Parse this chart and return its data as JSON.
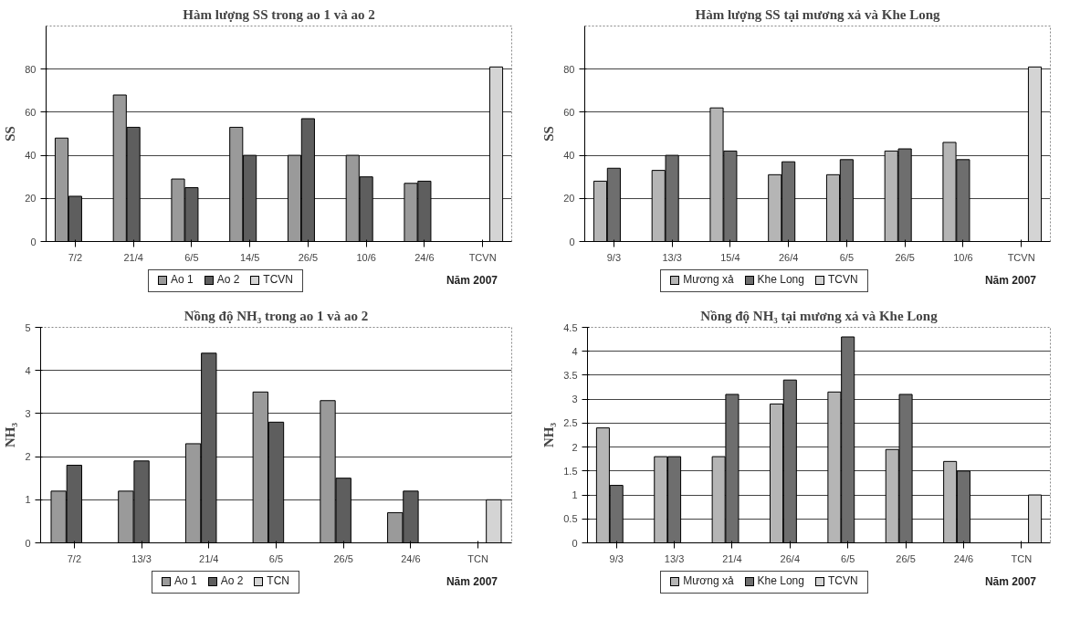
{
  "chart_data": [
    {
      "type": "bar",
      "title": "Hàm lượng SS trong ao 1 và ao 2",
      "ylabel": "SS",
      "annotations": [
        "Năm 2007"
      ],
      "categories": [
        "7/2",
        "21/4",
        "6/5",
        "14/5",
        "26/5",
        "10/6",
        "24/6",
        "TCVN"
      ],
      "series": [
        {
          "name": "Ao 1",
          "color": "#9a9a9a",
          "values": [
            48,
            68,
            29,
            53,
            40,
            40,
            27,
            null
          ]
        },
        {
          "name": "Ao 2",
          "color": "#5e5e5e",
          "values": [
            21,
            53,
            25,
            40,
            57,
            30,
            28,
            null
          ]
        },
        {
          "name": "TCVN",
          "color": "#d4d4d4",
          "values": [
            null,
            null,
            null,
            null,
            null,
            null,
            null,
            81
          ]
        }
      ],
      "ylim": [
        0,
        100
      ],
      "yticks": [
        0,
        20,
        40,
        60,
        80
      ],
      "grid": "y",
      "legend": "bottom"
    },
    {
      "type": "bar",
      "title": "Hàm lượng SS tại mương xả và Khe Long",
      "ylabel": "SS",
      "annotations": [
        "Năm 2007"
      ],
      "categories": [
        "9/3",
        "13/3",
        "15/4",
        "26/4",
        "6/5",
        "26/5",
        "10/6",
        "TCVN"
      ],
      "series": [
        {
          "name": "Mương xả",
          "color": "#b5b5b5",
          "values": [
            28,
            33,
            62,
            31,
            31,
            42,
            46,
            null
          ]
        },
        {
          "name": "Khe Long",
          "color": "#6e6e6e",
          "values": [
            34,
            40,
            42,
            37,
            38,
            43,
            38,
            null
          ]
        },
        {
          "name": "TCVN",
          "color": "#d4d4d4",
          "values": [
            null,
            null,
            null,
            null,
            null,
            null,
            null,
            81
          ]
        }
      ],
      "ylim": [
        0,
        100
      ],
      "yticks": [
        0,
        20,
        40,
        60,
        80
      ],
      "grid": "y",
      "legend": "bottom"
    },
    {
      "type": "bar",
      "title": "Nồng độ NH₃ trong ao 1 và ao 2",
      "ylabel": "NH₃",
      "annotations": [
        "Năm 2007"
      ],
      "categories": [
        "7/2",
        "13/3",
        "21/4",
        "6/5",
        "26/5",
        "24/6",
        "TCN"
      ],
      "series": [
        {
          "name": "Ao 1",
          "color": "#9a9a9a",
          "values": [
            1.2,
            1.2,
            2.3,
            3.5,
            3.3,
            0.7,
            null
          ]
        },
        {
          "name": "Ao 2",
          "color": "#5e5e5e",
          "values": [
            1.8,
            1.9,
            4.4,
            2.8,
            1.5,
            1.2,
            null
          ]
        },
        {
          "name": "TCN",
          "color": "#d4d4d4",
          "values": [
            null,
            null,
            null,
            null,
            null,
            null,
            1.0
          ]
        }
      ],
      "ylim": [
        0,
        5
      ],
      "yticks": [
        0,
        1,
        2,
        3,
        4,
        5
      ],
      "grid": "y",
      "legend": "bottom"
    },
    {
      "type": "bar",
      "title": "Nồng độ NH₃ tại mương xả và Khe Long",
      "ylabel": "NH₃",
      "annotations": [
        "Năm 2007"
      ],
      "categories": [
        "9/3",
        "13/3",
        "21/4",
        "26/4",
        "6/5",
        "26/5",
        "24/6",
        "TCN"
      ],
      "series": [
        {
          "name": "Mương xả",
          "color": "#b5b5b5",
          "values": [
            2.4,
            1.8,
            1.8,
            2.9,
            3.15,
            1.95,
            1.7,
            null
          ]
        },
        {
          "name": "Khe Long",
          "color": "#6e6e6e",
          "values": [
            1.2,
            1.8,
            3.1,
            3.4,
            4.3,
            3.1,
            1.5,
            null
          ]
        },
        {
          "name": "TCVN",
          "color": "#d4d4d4",
          "values": [
            null,
            null,
            null,
            null,
            null,
            null,
            null,
            1.0
          ]
        }
      ],
      "ylim": [
        0,
        4.5
      ],
      "yticks": [
        0,
        0.5,
        1,
        1.5,
        2,
        2.5,
        3,
        3.5,
        4,
        4.5
      ],
      "grid": "y",
      "legend": "bottom"
    }
  ]
}
